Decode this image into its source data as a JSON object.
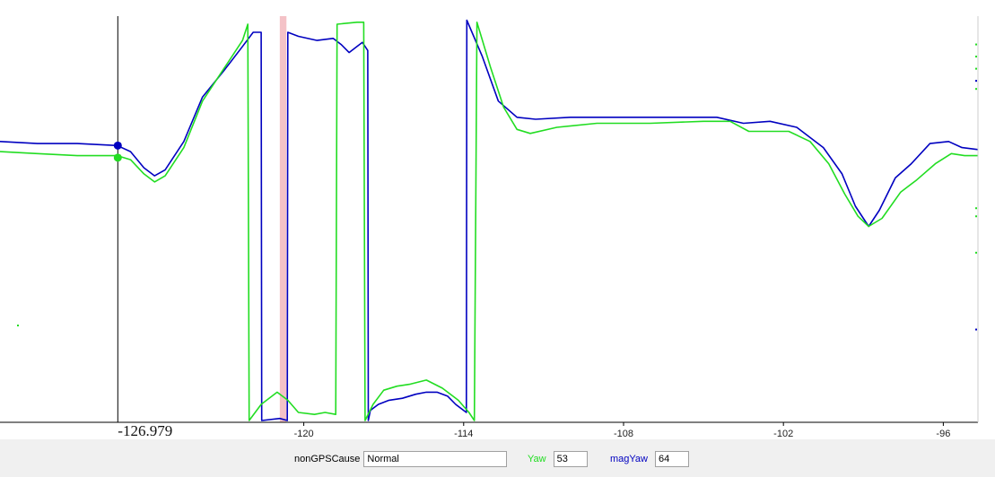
{
  "chart_data": {
    "type": "line",
    "xlim": [
      -131.4,
      -94.7
    ],
    "ylim": [
      -1,
      1
    ],
    "x_ticks": [
      -120,
      -114,
      -108,
      -102,
      -96
    ],
    "cursor": {
      "x": -126.979,
      "label": "-126.979"
    },
    "highlight_band": {
      "x_range": [
        -120.9,
        -120.65
      ],
      "color": "#f4c2c7"
    },
    "series": [
      {
        "name": "magYaw",
        "color": "#0000c0",
        "points": [
          [
            -131.4,
            0.38
          ],
          [
            -130,
            0.37
          ],
          [
            -128.5,
            0.37
          ],
          [
            -127,
            0.36
          ],
          [
            -126.5,
            0.33
          ],
          [
            -126,
            0.25
          ],
          [
            -125.6,
            0.21
          ],
          [
            -125.2,
            0.24
          ],
          [
            -124.5,
            0.38
          ],
          [
            -123.8,
            0.6
          ],
          [
            -123,
            0.73
          ],
          [
            -122.3,
            0.85
          ],
          [
            -121.9,
            0.92
          ],
          [
            -121.6,
            0.92
          ],
          [
            -121.58,
            -1.0
          ],
          [
            -120.9,
            -0.99
          ],
          [
            -120.62,
            -1.0
          ],
          [
            -120.6,
            0.92
          ],
          [
            -120.2,
            0.9
          ],
          [
            -119.5,
            0.88
          ],
          [
            -118.9,
            0.89
          ],
          [
            -118.6,
            0.86
          ],
          [
            -118.3,
            0.82
          ],
          [
            -118.0,
            0.85
          ],
          [
            -117.8,
            0.87
          ],
          [
            -117.6,
            0.83
          ],
          [
            -117.58,
            -1.0
          ],
          [
            -117.5,
            -0.95
          ],
          [
            -117.2,
            -0.92
          ],
          [
            -116.8,
            -0.9
          ],
          [
            -116.3,
            -0.89
          ],
          [
            -115.8,
            -0.87
          ],
          [
            -115.4,
            -0.86
          ],
          [
            -115.0,
            -0.86
          ],
          [
            -114.6,
            -0.88
          ],
          [
            -114.3,
            -0.92
          ],
          [
            -113.9,
            -0.96
          ],
          [
            -113.88,
            0.98
          ],
          [
            -113.3,
            0.8
          ],
          [
            -112.7,
            0.58
          ],
          [
            -112.0,
            0.5
          ],
          [
            -111.3,
            0.49
          ],
          [
            -110.0,
            0.5
          ],
          [
            -108.0,
            0.5
          ],
          [
            -106.0,
            0.5
          ],
          [
            -104.5,
            0.5
          ],
          [
            -103.5,
            0.47
          ],
          [
            -102.5,
            0.48
          ],
          [
            -101.5,
            0.45
          ],
          [
            -100.5,
            0.35
          ],
          [
            -99.8,
            0.22
          ],
          [
            -99.3,
            0.06
          ],
          [
            -98.8,
            -0.04
          ],
          [
            -98.4,
            0.04
          ],
          [
            -97.8,
            0.2
          ],
          [
            -97.2,
            0.27
          ],
          [
            -96.5,
            0.37
          ],
          [
            -95.8,
            0.38
          ],
          [
            -95.3,
            0.35
          ],
          [
            -94.7,
            0.34
          ]
        ]
      },
      {
        "name": "Yaw",
        "color": "#22dd22",
        "points": [
          [
            -131.4,
            0.33
          ],
          [
            -130,
            0.32
          ],
          [
            -128.5,
            0.31
          ],
          [
            -127,
            0.31
          ],
          [
            -126.5,
            0.29
          ],
          [
            -126,
            0.22
          ],
          [
            -125.6,
            0.18
          ],
          [
            -125.2,
            0.21
          ],
          [
            -124.5,
            0.35
          ],
          [
            -123.8,
            0.58
          ],
          [
            -123,
            0.74
          ],
          [
            -122.3,
            0.88
          ],
          [
            -122.1,
            0.96
          ],
          [
            -122.05,
            -1.0
          ],
          [
            -121.6,
            -0.92
          ],
          [
            -121.0,
            -0.86
          ],
          [
            -120.6,
            -0.9
          ],
          [
            -120.2,
            -0.96
          ],
          [
            -119.6,
            -0.97
          ],
          [
            -119.2,
            -0.96
          ],
          [
            -118.8,
            -0.97
          ],
          [
            -118.75,
            0.96
          ],
          [
            -118.0,
            0.97
          ],
          [
            -117.75,
            0.97
          ],
          [
            -117.7,
            -1.0
          ],
          [
            -117.4,
            -0.92
          ],
          [
            -117.0,
            -0.85
          ],
          [
            -116.5,
            -0.83
          ],
          [
            -116.0,
            -0.82
          ],
          [
            -115.4,
            -0.8
          ],
          [
            -114.8,
            -0.84
          ],
          [
            -114.2,
            -0.9
          ],
          [
            -113.8,
            -0.96
          ],
          [
            -113.6,
            -1.0
          ],
          [
            -113.5,
            0.97
          ],
          [
            -113.0,
            0.75
          ],
          [
            -112.5,
            0.55
          ],
          [
            -112.0,
            0.44
          ],
          [
            -111.5,
            0.42
          ],
          [
            -110.5,
            0.45
          ],
          [
            -109.0,
            0.47
          ],
          [
            -107.0,
            0.47
          ],
          [
            -105.0,
            0.48
          ],
          [
            -104.0,
            0.48
          ],
          [
            -103.3,
            0.43
          ],
          [
            -102.5,
            0.43
          ],
          [
            -101.8,
            0.43
          ],
          [
            -101.0,
            0.38
          ],
          [
            -100.3,
            0.27
          ],
          [
            -99.7,
            0.12
          ],
          [
            -99.2,
            0.01
          ],
          [
            -98.8,
            -0.04
          ],
          [
            -98.3,
            0.0
          ],
          [
            -97.6,
            0.13
          ],
          [
            -97.0,
            0.19
          ],
          [
            -96.3,
            0.27
          ],
          [
            -95.7,
            0.32
          ],
          [
            -95.2,
            0.31
          ],
          [
            -94.7,
            0.31
          ]
        ]
      }
    ],
    "cursor_markers": [
      {
        "series": "magYaw",
        "y": 0.36,
        "color": "#0000c0"
      },
      {
        "series": "Yaw",
        "y": 0.3,
        "color": "#22dd22"
      }
    ],
    "edge_ticks_right": [
      {
        "y": 0.86,
        "color": "#22dd22"
      },
      {
        "y": 0.8,
        "color": "#22dd22"
      },
      {
        "y": 0.74,
        "color": "#22dd22"
      },
      {
        "y": 0.68,
        "color": "#0000c0"
      },
      {
        "y": 0.64,
        "color": "#22dd22"
      },
      {
        "y": 0.05,
        "color": "#22dd22"
      },
      {
        "y": 0.01,
        "color": "#22dd22"
      },
      {
        "y": -0.17,
        "color": "#22dd22"
      },
      {
        "y": -0.55,
        "color": "#0000c0"
      }
    ],
    "edge_ticks_left": [
      {
        "y": -0.53,
        "color": "#22dd22"
      }
    ]
  },
  "footer": {
    "nongps": {
      "label": "nonGPSCause",
      "value": "Normal"
    },
    "yaw": {
      "label": "Yaw",
      "value": "53",
      "color": "#22dd22"
    },
    "magyaw": {
      "label": "magYaw",
      "value": "64",
      "color": "#0000c0"
    }
  }
}
